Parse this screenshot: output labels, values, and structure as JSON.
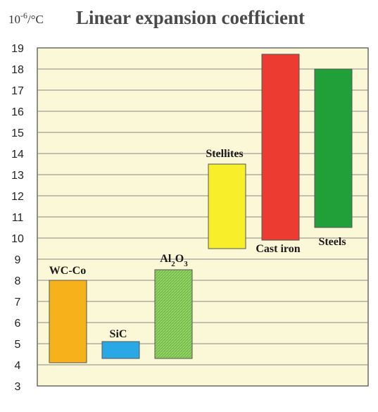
{
  "chart_data": {
    "type": "bar",
    "title": "Linear expansion coefficient",
    "unit": "10-6/°C",
    "ylim": [
      3,
      19
    ],
    "yticks": [
      "3",
      "4",
      "5",
      "6",
      "7",
      "8",
      "9",
      "10",
      "11",
      "12",
      "13",
      "14",
      "15",
      "16",
      "17",
      "18",
      "19"
    ],
    "grid": true,
    "plot_background": "#fbf8d8",
    "bars": [
      {
        "label": "WC-Co",
        "min": 4.1,
        "max": 8.0,
        "color": "#f7b21b",
        "pattern": "solid"
      },
      {
        "label": "SiC",
        "min": 4.3,
        "max": 5.1,
        "color": "#29a8e6",
        "pattern": "solid"
      },
      {
        "label": "Al2O3",
        "min": 4.3,
        "max": 8.5,
        "color": "#8fcf5e",
        "pattern": "hatched"
      },
      {
        "label": "Stellites",
        "min": 9.5,
        "max": 13.5,
        "color": "#f8ee2a",
        "pattern": "solid"
      },
      {
        "label": "Cast iron",
        "min": 9.9,
        "max": 18.7,
        "color": "#ec3b30",
        "pattern": "solid"
      },
      {
        "label": "Steels",
        "min": 10.5,
        "max": 18.0,
        "color": "#21a03a",
        "pattern": "solid"
      }
    ]
  }
}
